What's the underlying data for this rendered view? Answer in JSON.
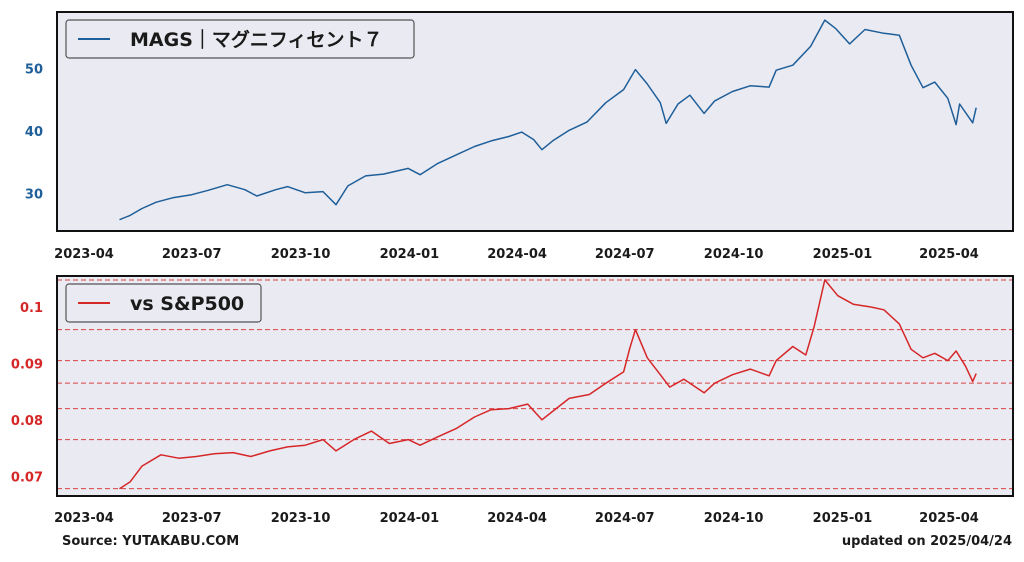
{
  "footer": {
    "source": "Source: YUTAKABU.COM",
    "updated": "updated on 2025/04/24"
  },
  "chart_data": [
    {
      "type": "line",
      "legend": "top-left",
      "grid": false,
      "background": "#eaeaf2",
      "x_ticks": [
        "2023-04",
        "2023-07",
        "2023-10",
        "2024-01",
        "2024-04",
        "2024-07",
        "2024-10",
        "2025-01",
        "2025-04"
      ],
      "y_ticks": [
        30,
        40,
        50
      ],
      "ylim": [
        24,
        59
      ],
      "series": [
        {
          "name": "MAGS｜マグニフィセント７",
          "color": "#1f5f99",
          "points": [
            [
              "2023-05-01",
              25.8
            ],
            [
              "2023-05-10",
              26.5
            ],
            [
              "2023-05-20",
              27.6
            ],
            [
              "2023-06-01",
              28.6
            ],
            [
              "2023-06-15",
              29.3
            ],
            [
              "2023-07-01",
              29.8
            ],
            [
              "2023-07-15",
              30.5
            ],
            [
              "2023-07-31",
              31.4
            ],
            [
              "2023-08-15",
              30.6
            ],
            [
              "2023-08-25",
              29.6
            ],
            [
              "2023-09-10",
              30.6
            ],
            [
              "2023-09-20",
              31.1
            ],
            [
              "2023-10-05",
              30.1
            ],
            [
              "2023-10-20",
              30.3
            ],
            [
              "2023-10-31",
              28.2
            ],
            [
              "2023-11-10",
              31.2
            ],
            [
              "2023-11-25",
              32.8
            ],
            [
              "2023-12-10",
              33.1
            ],
            [
              "2023-12-31",
              34.0
            ],
            [
              "2024-01-10",
              33.0
            ],
            [
              "2024-01-25",
              34.8
            ],
            [
              "2024-02-10",
              36.2
            ],
            [
              "2024-02-25",
              37.5
            ],
            [
              "2024-03-10",
              38.4
            ],
            [
              "2024-03-25",
              39.1
            ],
            [
              "2024-04-05",
              39.8
            ],
            [
              "2024-04-15",
              38.6
            ],
            [
              "2024-04-22",
              37.0
            ],
            [
              "2024-05-01",
              38.4
            ],
            [
              "2024-05-15",
              40.1
            ],
            [
              "2024-05-30",
              41.4
            ],
            [
              "2024-06-15",
              44.5
            ],
            [
              "2024-06-30",
              46.6
            ],
            [
              "2024-07-10",
              49.8
            ],
            [
              "2024-07-20",
              47.5
            ],
            [
              "2024-07-31",
              44.5
            ],
            [
              "2024-08-05",
              41.2
            ],
            [
              "2024-08-15",
              44.3
            ],
            [
              "2024-08-25",
              45.7
            ],
            [
              "2024-09-06",
              42.8
            ],
            [
              "2024-09-15",
              44.8
            ],
            [
              "2024-09-30",
              46.3
            ],
            [
              "2024-10-15",
              47.2
            ],
            [
              "2024-10-31",
              47.0
            ],
            [
              "2024-11-06",
              49.7
            ],
            [
              "2024-11-20",
              50.5
            ],
            [
              "2024-12-05",
              53.5
            ],
            [
              "2024-12-17",
              57.7
            ],
            [
              "2024-12-26",
              56.4
            ],
            [
              "2025-01-07",
              53.9
            ],
            [
              "2025-01-20",
              56.2
            ],
            [
              "2025-02-05",
              55.6
            ],
            [
              "2025-02-18",
              55.3
            ],
            [
              "2025-02-28",
              50.5
            ],
            [
              "2025-03-10",
              46.9
            ],
            [
              "2025-03-20",
              47.8
            ],
            [
              "2025-03-31",
              45.2
            ],
            [
              "2025-04-07",
              41.0
            ],
            [
              "2025-04-10",
              44.3
            ],
            [
              "2025-04-21",
              41.3
            ],
            [
              "2025-04-24",
              43.7
            ]
          ]
        }
      ]
    },
    {
      "type": "line",
      "legend": "top-left",
      "grid": "horizontal dashed (red)",
      "background": "#eaeaf2",
      "x_ticks": [
        "2023-04",
        "2023-07",
        "2023-10",
        "2024-01",
        "2024-04",
        "2024-07",
        "2024-10",
        "2025-01",
        "2025-04"
      ],
      "y_ticks": [
        0.07,
        0.08,
        0.09,
        0.1
      ],
      "ylim": [
        0.0665,
        0.1055
      ],
      "series": [
        {
          "name": "vs S&P500",
          "color": "#d62728",
          "points": [
            [
              "2023-05-01",
              0.0678
            ],
            [
              "2023-05-10",
              0.069
            ],
            [
              "2023-05-20",
              0.0718
            ],
            [
              "2023-06-05",
              0.0738
            ],
            [
              "2023-06-20",
              0.0732
            ],
            [
              "2023-07-05",
              0.0735
            ],
            [
              "2023-07-20",
              0.074
            ],
            [
              "2023-08-05",
              0.0742
            ],
            [
              "2023-08-20",
              0.0735
            ],
            [
              "2023-09-05",
              0.0745
            ],
            [
              "2023-09-20",
              0.0752
            ],
            [
              "2023-10-05",
              0.0755
            ],
            [
              "2023-10-20",
              0.0765
            ],
            [
              "2023-10-31",
              0.0745
            ],
            [
              "2023-11-15",
              0.0765
            ],
            [
              "2023-11-30",
              0.078
            ],
            [
              "2023-12-15",
              0.0758
            ],
            [
              "2023-12-31",
              0.0765
            ],
            [
              "2024-01-10",
              0.0755
            ],
            [
              "2024-01-25",
              0.077
            ],
            [
              "2024-02-10",
              0.0785
            ],
            [
              "2024-02-25",
              0.0805
            ],
            [
              "2024-03-10",
              0.0818
            ],
            [
              "2024-03-25",
              0.082
            ],
            [
              "2024-04-10",
              0.0828
            ],
            [
              "2024-04-22",
              0.08
            ],
            [
              "2024-05-01",
              0.0815
            ],
            [
              "2024-05-15",
              0.0838
            ],
            [
              "2024-06-01",
              0.0845
            ],
            [
              "2024-06-15",
              0.0865
            ],
            [
              "2024-06-30",
              0.0885
            ],
            [
              "2024-07-05",
              0.0925
            ],
            [
              "2024-07-10",
              0.096
            ],
            [
              "2024-07-20",
              0.091
            ],
            [
              "2024-07-31",
              0.088
            ],
            [
              "2024-08-08",
              0.0858
            ],
            [
              "2024-08-20",
              0.0872
            ],
            [
              "2024-09-06",
              0.0848
            ],
            [
              "2024-09-15",
              0.0865
            ],
            [
              "2024-09-30",
              0.088
            ],
            [
              "2024-10-15",
              0.089
            ],
            [
              "2024-10-31",
              0.0878
            ],
            [
              "2024-11-06",
              0.0905
            ],
            [
              "2024-11-20",
              0.093
            ],
            [
              "2024-12-01",
              0.0915
            ],
            [
              "2024-12-08",
              0.0965
            ],
            [
              "2024-12-17",
              0.1048
            ],
            [
              "2024-12-28",
              0.102
            ],
            [
              "2025-01-10",
              0.1005
            ],
            [
              "2025-01-25",
              0.1
            ],
            [
              "2025-02-05",
              0.0995
            ],
            [
              "2025-02-18",
              0.097
            ],
            [
              "2025-02-28",
              0.0925
            ],
            [
              "2025-03-10",
              0.091
            ],
            [
              "2025-03-20",
              0.0918
            ],
            [
              "2025-03-31",
              0.0905
            ],
            [
              "2025-04-07",
              0.0922
            ],
            [
              "2025-04-15",
              0.0895
            ],
            [
              "2025-04-21",
              0.0868
            ],
            [
              "2025-04-24",
              0.0882
            ]
          ]
        }
      ],
      "reference_lines": [
        0.1048,
        0.096,
        0.0905,
        0.0865,
        0.082,
        0.0765,
        0.0678
      ]
    }
  ]
}
